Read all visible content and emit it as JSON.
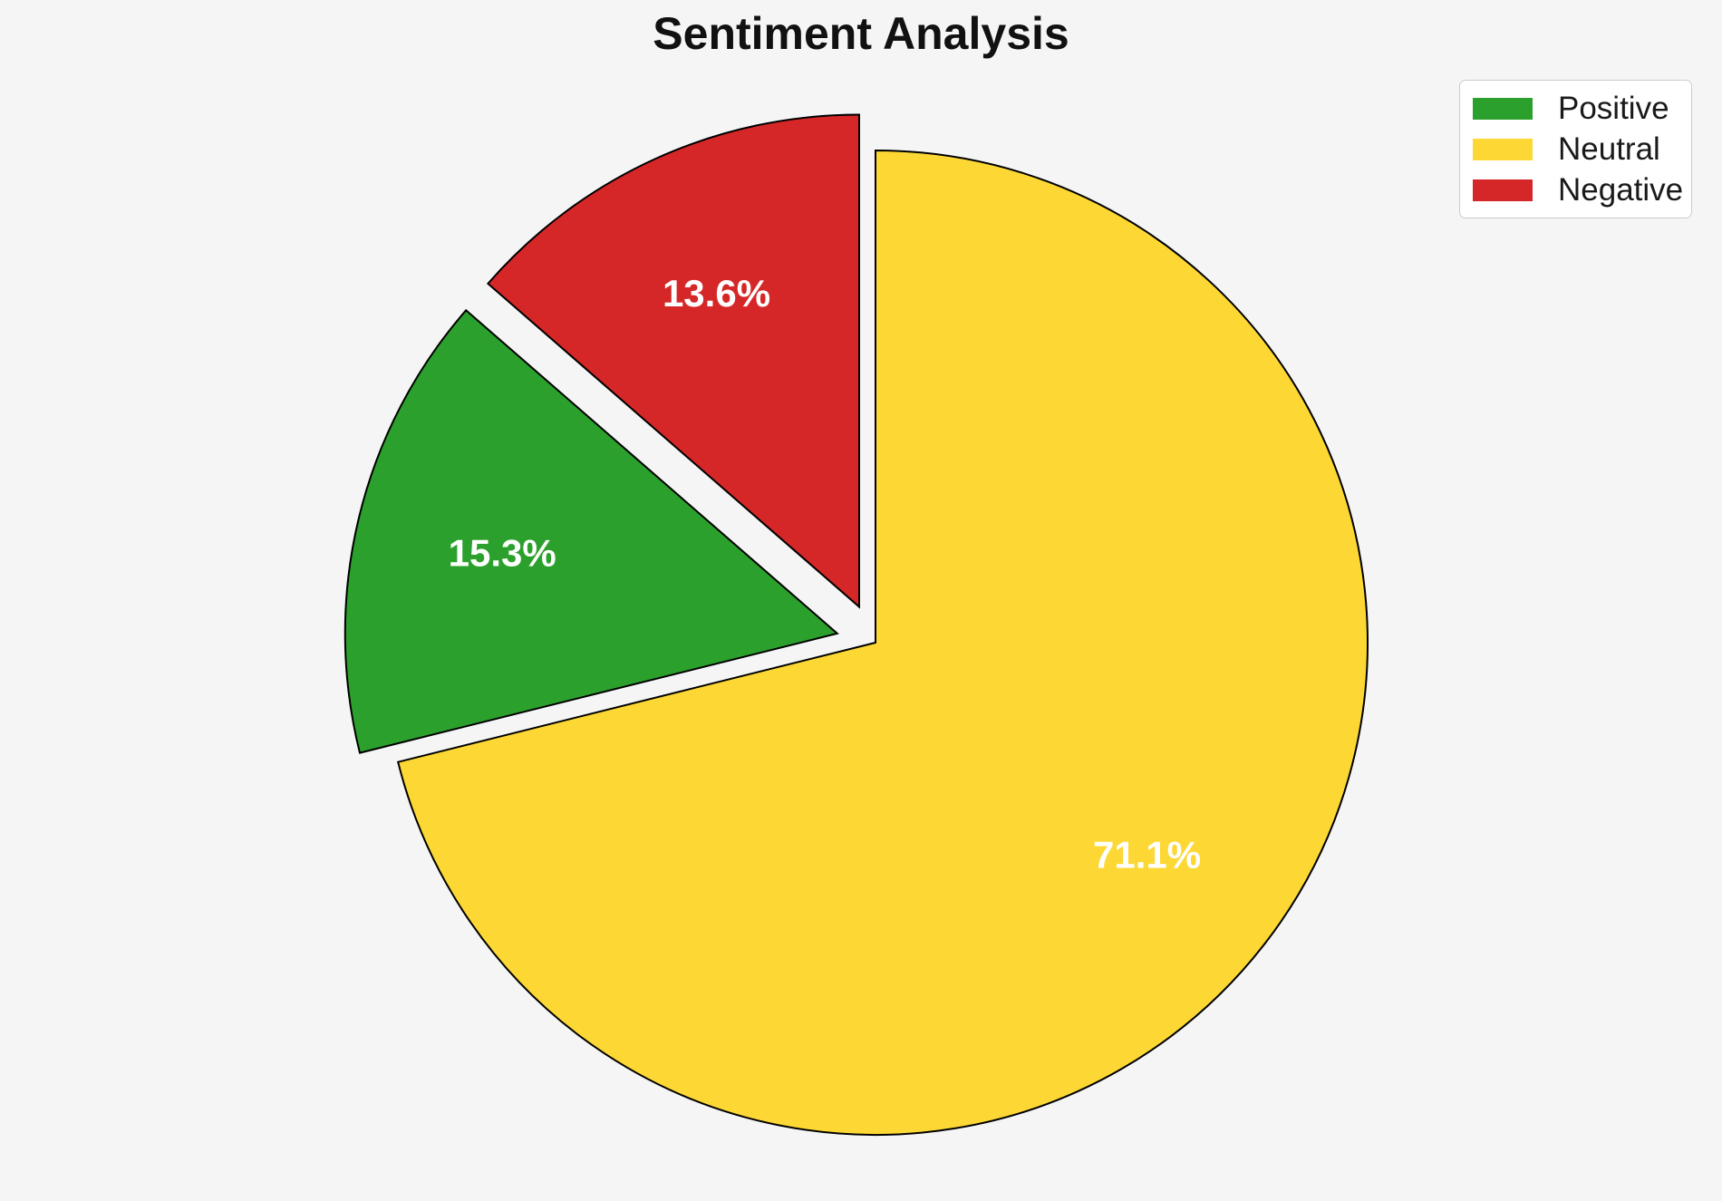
{
  "title": "Sentiment Analysis",
  "colors": {
    "background": "#f5f5f5",
    "edge": "#000000",
    "pct_label": "#ffffff",
    "title_text": "#111111",
    "legend_border": "#cccccc",
    "legend_background": "#ffffff"
  },
  "chart_data": {
    "type": "pie",
    "title": "Sentiment Analysis",
    "slices": [
      {
        "label": "Positive",
        "value": 15.3,
        "pct_label": "15.3%",
        "color": "#2ca02c",
        "explode": 0.08
      },
      {
        "label": "Neutral",
        "value": 71.1,
        "pct_label": "71.1%",
        "color": "#fdd835",
        "explode": 0
      },
      {
        "label": "Negative",
        "value": 13.6,
        "pct_label": "13.6%",
        "color": "#d62728",
        "explode": 0.08
      }
    ],
    "plot_order": [
      "Negative",
      "Positive",
      "Neutral"
    ],
    "start_angle": 90,
    "counterclock": true,
    "pctdistance": 0.7,
    "edge_width": 2,
    "legend": {
      "position": "upper right",
      "labels": [
        "Positive",
        "Neutral",
        "Negative"
      ]
    }
  }
}
